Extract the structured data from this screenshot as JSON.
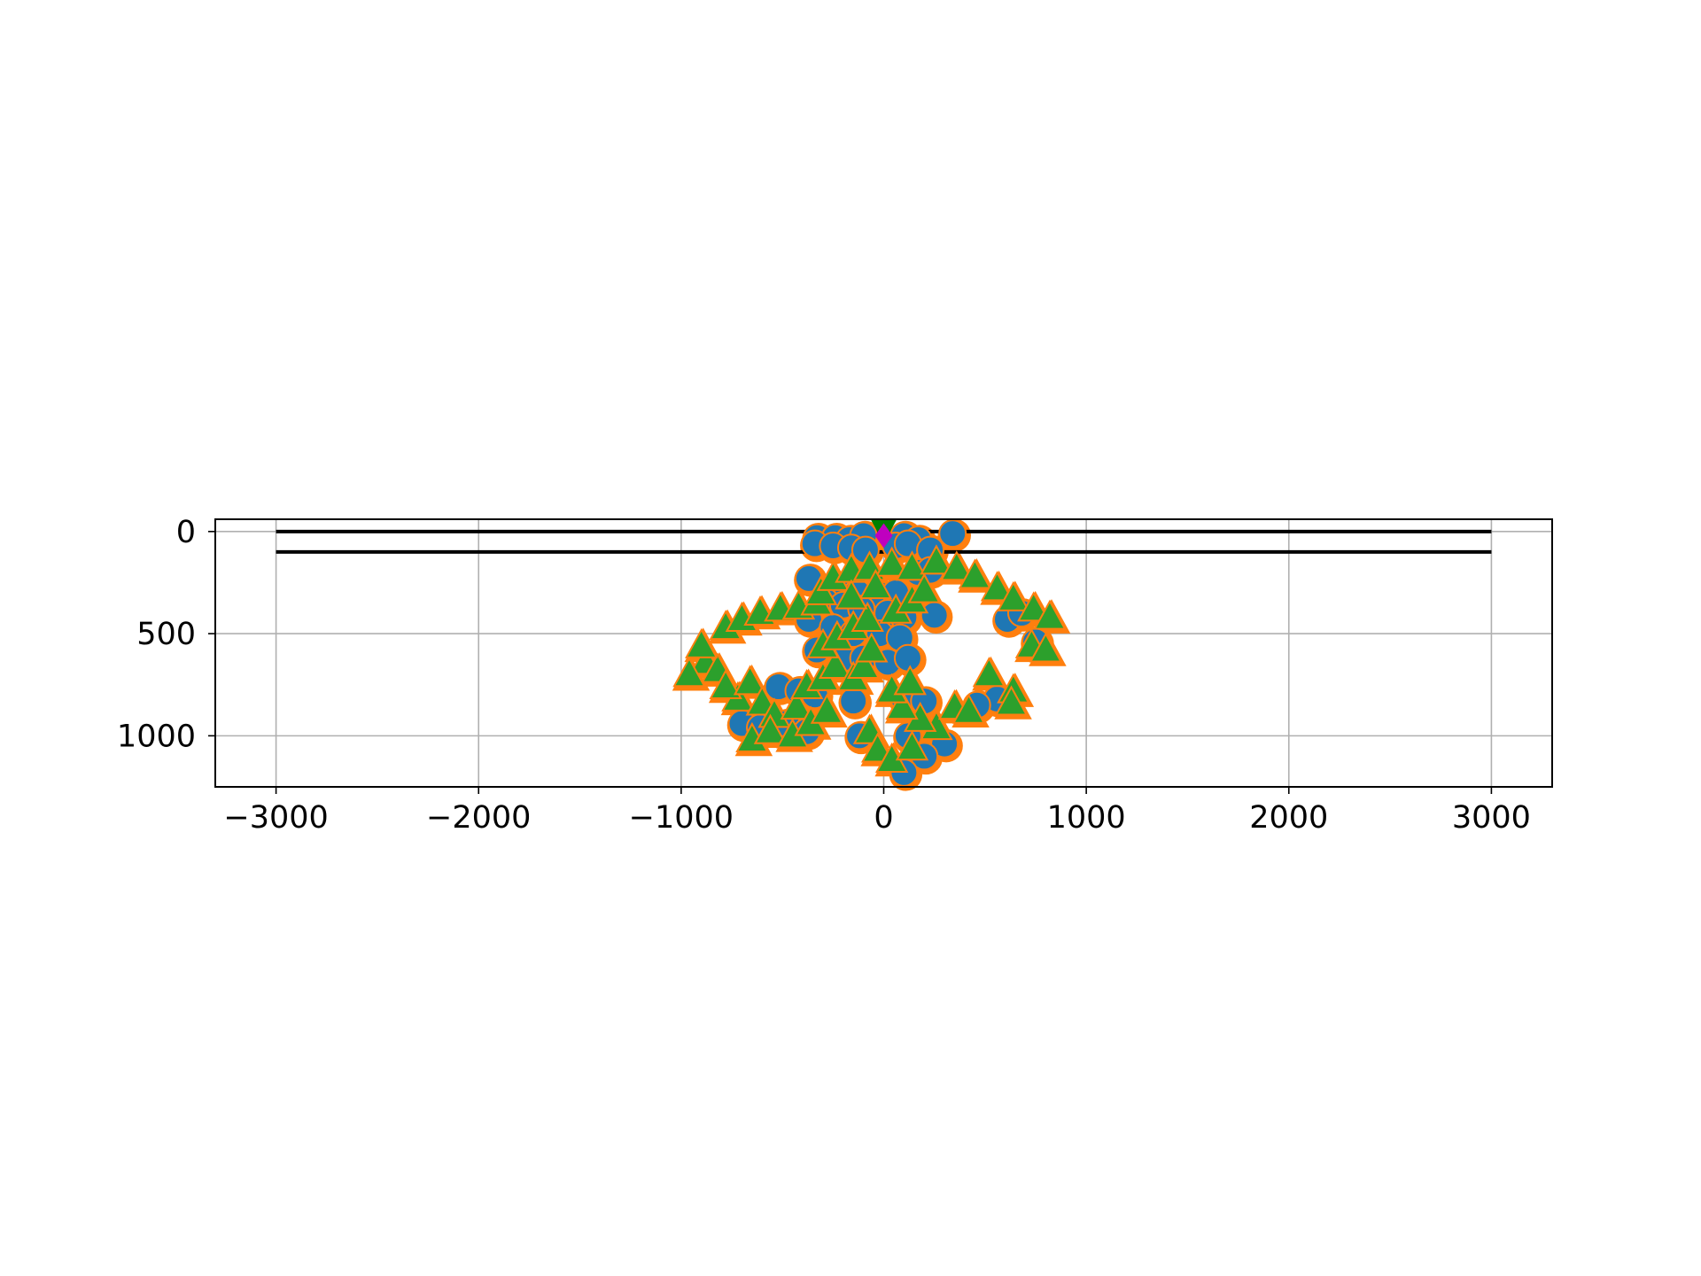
{
  "chart_data": {
    "type": "scatter",
    "title": "",
    "xlabel": "",
    "ylabel": "",
    "xlim": [
      -3300,
      3300
    ],
    "ylim": [
      1250,
      -60
    ],
    "y_inverted": true,
    "grid": true,
    "legend": "none",
    "xticks": [
      {
        "value": -3000,
        "label": "−3000"
      },
      {
        "value": -2000,
        "label": "−2000"
      },
      {
        "value": -1000,
        "label": "−1000"
      },
      {
        "value": 0,
        "label": "0"
      },
      {
        "value": 1000,
        "label": "1000"
      },
      {
        "value": 2000,
        "label": "2000"
      },
      {
        "value": 3000,
        "label": "3000"
      }
    ],
    "yticks": [
      {
        "value": 0,
        "label": "0"
      },
      {
        "value": 500,
        "label": "500"
      },
      {
        "value": 1000,
        "label": "1000"
      }
    ],
    "reference_lines": [
      {
        "x": [
          -3000,
          3000
        ],
        "y": [
          0,
          0
        ],
        "color": "#000000"
      },
      {
        "x": [
          -3000,
          3000
        ],
        "y": [
          100,
          100
        ],
        "color": "#000000"
      }
    ],
    "series": [
      {
        "marker": "circle",
        "color": "#1f77b4",
        "points": [
          [
            -330,
            30
          ],
          [
            -240,
            30
          ],
          [
            -170,
            40
          ],
          [
            -100,
            20
          ],
          [
            100,
            20
          ],
          [
            170,
            40
          ],
          [
            340,
            10
          ],
          [
            -340,
            60
          ],
          [
            -250,
            70
          ],
          [
            -160,
            80
          ],
          [
            -90,
            90
          ],
          [
            60,
            70
          ],
          [
            120,
            60
          ],
          [
            230,
            90
          ],
          [
            -370,
            230
          ],
          [
            -230,
            280
          ],
          [
            -130,
            300
          ],
          [
            -20,
            310
          ],
          [
            60,
            300
          ],
          [
            170,
            200
          ],
          [
            230,
            190
          ],
          [
            -290,
            340
          ],
          [
            -200,
            360
          ],
          [
            -110,
            380
          ],
          [
            20,
            400
          ],
          [
            100,
            420
          ],
          [
            250,
            410
          ],
          [
            -370,
            430
          ],
          [
            -250,
            470
          ],
          [
            -150,
            500
          ],
          [
            -20,
            500
          ],
          [
            80,
            520
          ],
          [
            610,
            430
          ],
          [
            680,
            400
          ],
          [
            -330,
            580
          ],
          [
            -200,
            620
          ],
          [
            -100,
            620
          ],
          [
            20,
            640
          ],
          [
            120,
            620
          ],
          [
            750,
            540
          ],
          [
            -520,
            760
          ],
          [
            -420,
            780
          ],
          [
            -340,
            800
          ],
          [
            -150,
            830
          ],
          [
            100,
            820
          ],
          [
            200,
            830
          ],
          [
            -700,
            940
          ],
          [
            -610,
            960
          ],
          [
            -480,
            940
          ],
          [
            -380,
            980
          ],
          [
            -120,
            1000
          ],
          [
            120,
            1000
          ],
          [
            300,
            1040
          ],
          [
            200,
            1100
          ],
          [
            100,
            1180
          ],
          [
            560,
            820
          ],
          [
            460,
            850
          ]
        ]
      },
      {
        "marker": "triangle",
        "color": "#2ca02c",
        "points": [
          [
            -880,
            640
          ],
          [
            -820,
            680
          ],
          [
            -960,
            700
          ],
          [
            -900,
            560
          ],
          [
            -780,
            470
          ],
          [
            -700,
            430
          ],
          [
            -610,
            400
          ],
          [
            -510,
            380
          ],
          [
            -420,
            370
          ],
          [
            -330,
            350
          ],
          [
            -310,
            300
          ],
          [
            -250,
            230
          ],
          [
            -160,
            190
          ],
          [
            -70,
            180
          ],
          [
            40,
            160
          ],
          [
            140,
            180
          ],
          [
            260,
            150
          ],
          [
            360,
            180
          ],
          [
            450,
            220
          ],
          [
            560,
            280
          ],
          [
            640,
            330
          ],
          [
            740,
            380
          ],
          [
            820,
            420
          ],
          [
            730,
            560
          ],
          [
            800,
            580
          ],
          [
            -720,
            820
          ],
          [
            -780,
            760
          ],
          [
            -660,
            740
          ],
          [
            -600,
            840
          ],
          [
            -540,
            900
          ],
          [
            -430,
            860
          ],
          [
            -380,
            760
          ],
          [
            -300,
            720
          ],
          [
            -240,
            660
          ],
          [
            -300,
            560
          ],
          [
            -230,
            520
          ],
          [
            -150,
            470
          ],
          [
            -80,
            430
          ],
          [
            60,
            390
          ],
          [
            140,
            340
          ],
          [
            200,
            290
          ],
          [
            -40,
            270
          ],
          [
            -160,
            320
          ],
          [
            -650,
            1020
          ],
          [
            -560,
            980
          ],
          [
            -450,
            1000
          ],
          [
            -360,
            940
          ],
          [
            -280,
            880
          ],
          [
            -70,
            980
          ],
          [
            -30,
            1070
          ],
          [
            40,
            1120
          ],
          [
            140,
            1060
          ],
          [
            260,
            960
          ],
          [
            180,
            920
          ],
          [
            90,
            860
          ],
          [
            40,
            780
          ],
          [
            130,
            740
          ],
          [
            350,
            860
          ],
          [
            420,
            880
          ],
          [
            520,
            700
          ],
          [
            640,
            780
          ],
          [
            630,
            840
          ],
          [
            -150,
            720
          ],
          [
            -100,
            660
          ],
          [
            -60,
            580
          ]
        ]
      },
      {
        "marker": "triangle-down",
        "color": "#008000",
        "points": [
          [
            0,
            -10
          ]
        ]
      },
      {
        "marker": "diamond",
        "color": "#bf00bf",
        "points": [
          [
            0,
            20
          ]
        ]
      }
    ]
  }
}
